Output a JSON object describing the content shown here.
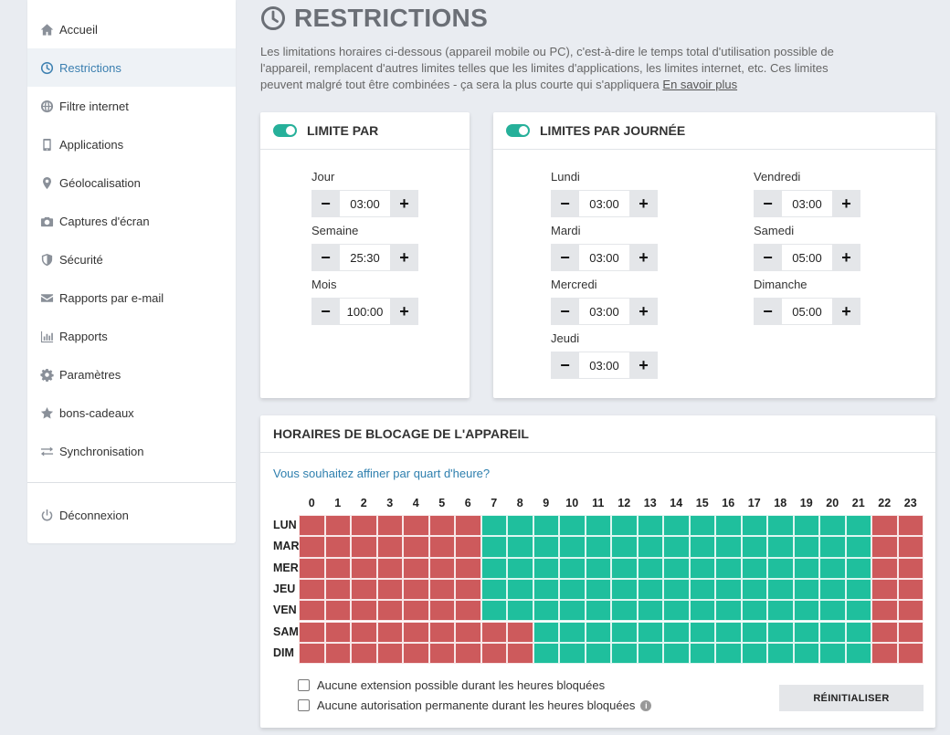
{
  "sidebar": {
    "items": [
      {
        "label": "Accueil",
        "icon": "home-icon"
      },
      {
        "label": "Restrictions",
        "icon": "clock-icon"
      },
      {
        "label": "Filtre internet",
        "icon": "globe-icon"
      },
      {
        "label": "Applications",
        "icon": "mobile-icon"
      },
      {
        "label": "Géolocalisation",
        "icon": "map-pin-icon"
      },
      {
        "label": "Captures d'écran",
        "icon": "camera-icon"
      },
      {
        "label": "Sécurité",
        "icon": "shield-icon"
      },
      {
        "label": "Rapports par e-mail",
        "icon": "envelope-icon"
      },
      {
        "label": "Rapports",
        "icon": "bar-chart-icon"
      },
      {
        "label": "Paramètres",
        "icon": "gear-icon"
      },
      {
        "label": "bons-cadeaux",
        "icon": "star-icon"
      },
      {
        "label": "Synchronisation",
        "icon": "sync-arrows-icon"
      }
    ],
    "logout": {
      "label": "Déconnexion",
      "icon": "power-icon"
    }
  },
  "page": {
    "title": "RESTRICTIONS",
    "intro": "Les limitations horaires ci-dessous (appareil mobile ou PC), c'est-à-dire le temps total d'utilisation possible de l'appareil, remplacent d'autres limites telles que les limites d'applications, les limites internet, etc. Ces limites peuvent malgré tout être combinées - ça sera la plus courte qui s'appliquera",
    "learn_more": "En savoir plus"
  },
  "limit_per": {
    "title": "LIMITE PAR",
    "enabled": true,
    "fields": [
      {
        "label": "Jour",
        "value": "03:00"
      },
      {
        "label": "Semaine",
        "value": "25:30"
      },
      {
        "label": "Mois",
        "value": "100:00"
      }
    ]
  },
  "limits_per_day": {
    "title": "LIMITES PAR JOURNÉE",
    "enabled": true,
    "fields": [
      {
        "label": "Lundi",
        "value": "03:00"
      },
      {
        "label": "Mardi",
        "value": "03:00"
      },
      {
        "label": "Mercredi",
        "value": "03:00"
      },
      {
        "label": "Jeudi",
        "value": "03:00"
      },
      {
        "label": "Vendredi",
        "value": "03:00"
      },
      {
        "label": "Samedi",
        "value": "05:00"
      },
      {
        "label": "Dimanche",
        "value": "05:00"
      }
    ]
  },
  "schedule": {
    "title": "HORAIRES DE BLOCAGE DE L'APPAREIL",
    "quarter_link": "Vous souhaitez affiner par quart d'heure?",
    "hours": [
      "0",
      "1",
      "2",
      "3",
      "4",
      "5",
      "6",
      "7",
      "8",
      "9",
      "10",
      "11",
      "12",
      "13",
      "14",
      "15",
      "16",
      "17",
      "18",
      "19",
      "20",
      "21",
      "22",
      "23"
    ],
    "days": [
      "LUN",
      "MAR",
      "MER",
      "JEU",
      "VEN",
      "SAM",
      "DIM"
    ],
    "allowed_ranges": [
      {
        "day": "LUN",
        "from": 7,
        "to": 21
      },
      {
        "day": "MAR",
        "from": 7,
        "to": 21
      },
      {
        "day": "MER",
        "from": 7,
        "to": 21
      },
      {
        "day": "JEU",
        "from": 7,
        "to": 21
      },
      {
        "day": "VEN",
        "from": 7,
        "to": 21
      },
      {
        "day": "SAM",
        "from": 9,
        "to": 21
      },
      {
        "day": "DIM",
        "from": 9,
        "to": 21
      }
    ],
    "colors": {
      "blocked": "#cd5a5c",
      "allowed": "#1fbf9d"
    },
    "checkbox_1": "Aucune extension possible durant les heures bloquées",
    "checkbox_2": "Aucune autorisation permanente durant les heures bloquées",
    "reset_label": "RÉINITIALISER"
  }
}
